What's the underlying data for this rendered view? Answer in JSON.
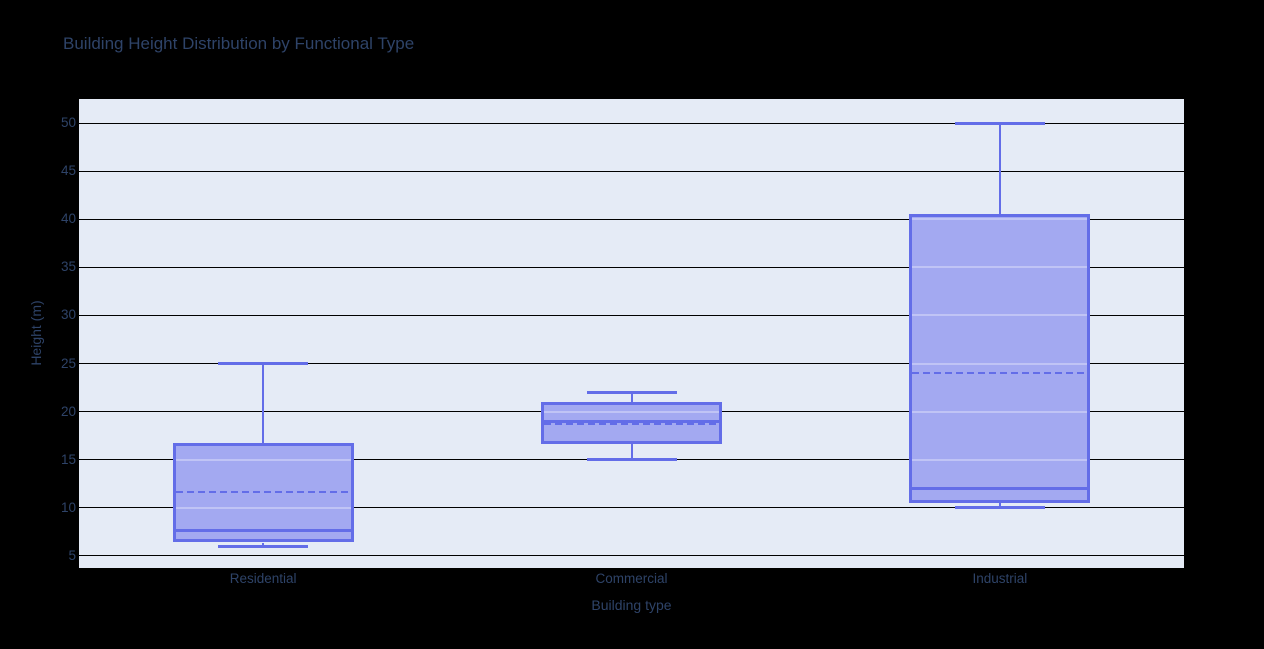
{
  "title": "Building Height Distribution by Functional Type",
  "colors": {
    "background": "#000000",
    "plot_background": "#e5ebf6",
    "grid_color": "#000000",
    "box_fill": "#a3a9f1",
    "box_line": "#636de8",
    "grid_through_box": "rgba(255,255,255,0.32)",
    "text_color": "#2e4368"
  },
  "chart_data": {
    "type": "box",
    "title": "Building Height Distribution by Functional Type",
    "xlabel": "Building type",
    "ylabel": "Height (m)",
    "categories": [
      "Residential",
      "Commercial",
      "Industrial"
    ],
    "yticks": [
      5,
      10,
      15,
      20,
      25,
      30,
      35,
      40,
      45,
      50
    ],
    "y_range": [
      3.75,
      52.5
    ],
    "grid": true,
    "legend": "none",
    "mean_line": "dashed",
    "series": [
      {
        "name": "Residential",
        "min": 6,
        "q1": 6.4,
        "median": 7.6,
        "mean": 11.6,
        "q3": 16.7,
        "max": 25
      },
      {
        "name": "Commercial",
        "min": 15,
        "q1": 16.6,
        "median": 19,
        "mean": 18.7,
        "q3": 21,
        "max": 22
      },
      {
        "name": "Industrial",
        "min": 10,
        "q1": 10.5,
        "median": 12,
        "mean": 24,
        "q3": 40.5,
        "max": 50
      }
    ]
  }
}
